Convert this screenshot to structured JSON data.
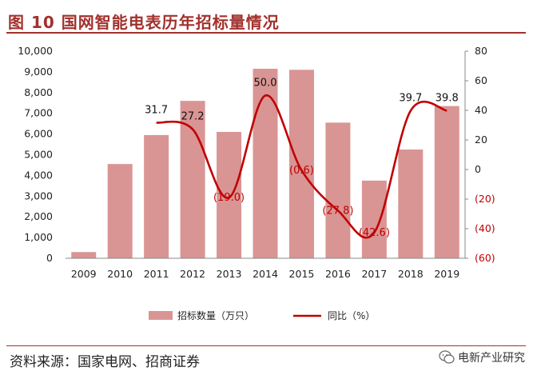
{
  "header": {
    "title": "图 10  国网智能电表历年招标量情况"
  },
  "footer": {
    "source": "资料来源：国家电网、招商证券",
    "brand": "电新产业研究"
  },
  "colors": {
    "bar": "#d99594",
    "line": "#c00000",
    "accent": "#a2312c"
  },
  "chart_data": {
    "type": "bar",
    "categories": [
      "2009",
      "2010",
      "2011",
      "2012",
      "2013",
      "2014",
      "2015",
      "2016",
      "2017",
      "2018",
      "2019"
    ],
    "series": [
      {
        "name": "招标数量（万只）",
        "type": "bar",
        "axis": "left",
        "values": [
          300,
          4550,
          5950,
          7600,
          6100,
          9150,
          9100,
          6550,
          3750,
          5250,
          7350
        ]
      },
      {
        "name": "同比（%）",
        "type": "line",
        "axis": "right",
        "values": [
          null,
          null,
          31.7,
          27.2,
          -19.0,
          50.0,
          -0.6,
          -27.8,
          -42.6,
          39.7,
          39.8
        ]
      }
    ],
    "data_labels": [
      "",
      "",
      "31.7",
      "27.2",
      "(19.0)",
      "50.0",
      "(0.6)",
      "(27.8)",
      "(42.6)",
      "39.7",
      "39.8"
    ],
    "yleft": {
      "lim": [
        0,
        10000
      ],
      "ticks": [
        0,
        1000,
        2000,
        3000,
        4000,
        5000,
        6000,
        7000,
        8000,
        9000,
        10000
      ],
      "tick_labels": [
        "0",
        "1,000",
        "2,000",
        "3,000",
        "4,000",
        "5,000",
        "6,000",
        "7,000",
        "8,000",
        "9,000",
        "10,000"
      ]
    },
    "yright": {
      "lim": [
        -60,
        80
      ],
      "ticks": [
        80,
        60,
        40,
        20,
        0,
        -20,
        -40,
        -60
      ],
      "tick_labels": [
        "80",
        "60",
        "40",
        "20",
        "0",
        "(20)",
        "(40)",
        "(60)"
      ]
    },
    "legend": [
      "招标数量（万只）",
      "同比（%）"
    ],
    "legend_position": "bottom",
    "grid": false
  }
}
